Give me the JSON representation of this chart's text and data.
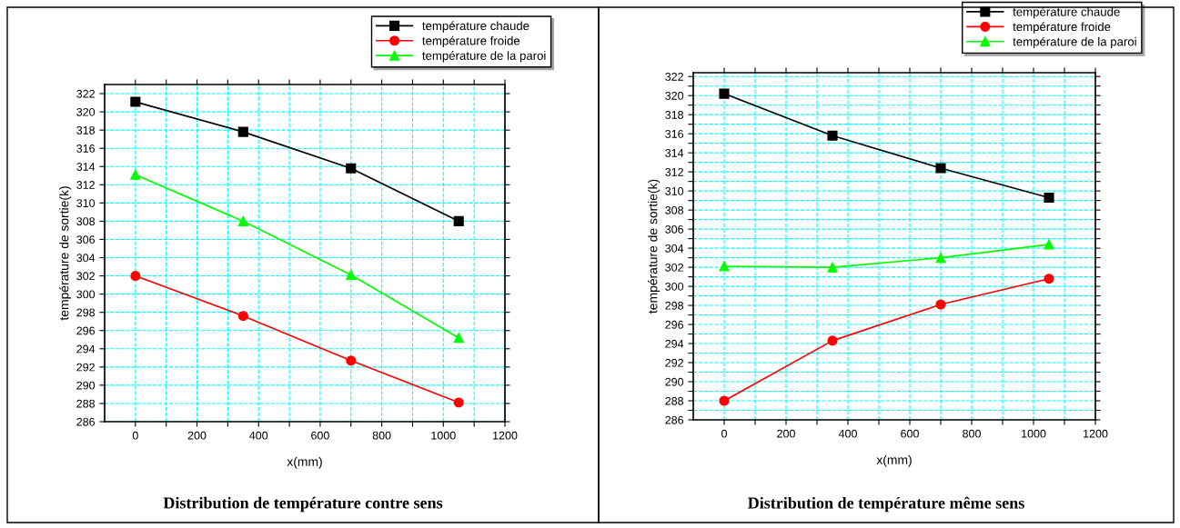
{
  "chart_data": [
    {
      "type": "line",
      "title": "Distribution de température contre sens",
      "xlabel": "x(mm)",
      "ylabel": "température de sortie(k)",
      "x": [
        0,
        350,
        700,
        1050
      ],
      "series": [
        {
          "name": "température chaude",
          "color": "#000000",
          "marker": "square",
          "values": [
            321.1,
            317.8,
            313.8,
            308.0
          ]
        },
        {
          "name": "température froide",
          "color": "#ff0000",
          "marker": "circle",
          "values": [
            302.0,
            297.6,
            292.7,
            288.1
          ]
        },
        {
          "name": "température de la paroi",
          "color": "#00ff00",
          "marker": "triangle",
          "values": [
            313.1,
            308.0,
            302.1,
            295.2
          ]
        }
      ],
      "xlim": [
        -100,
        1200
      ],
      "xticks": [
        0,
        {
          "value": 100,
          "label": null
        },
        200,
        {
          "value": 300,
          "label": null
        },
        400,
        {
          "value": 500,
          "label": null
        },
        600,
        {
          "value": 700,
          "label": null
        },
        800,
        {
          "value": 900,
          "label": null
        },
        1000,
        {
          "value": 1100,
          "label": null
        },
        1200
      ],
      "ylim": [
        286,
        323
      ],
      "yticks": [
        286,
        288,
        290,
        292,
        294,
        296,
        298,
        300,
        302,
        304,
        306,
        308,
        310,
        312,
        314,
        316,
        318,
        320,
        322
      ],
      "grid": true,
      "legend": "top right",
      "line_style": "solid"
    },
    {
      "type": "line",
      "title": "Distribution de température même sens",
      "xlabel": "x(mm)",
      "ylabel": "température de sortie(k)",
      "x": [
        0,
        350,
        700,
        1050
      ],
      "series": [
        {
          "name": "température chaude",
          "color": "#000000",
          "marker": "square",
          "values": [
            320.2,
            315.8,
            312.4,
            309.3
          ]
        },
        {
          "name": "température froide",
          "color": "#ff0000",
          "marker": "circle",
          "values": [
            288.0,
            294.3,
            298.1,
            300.8
          ]
        },
        {
          "name": "température de la paroi",
          "color": "#00ff00",
          "marker": "triangle",
          "values": [
            302.1,
            302.0,
            303.0,
            304.4
          ]
        }
      ],
      "xlim": [
        -100,
        1200
      ],
      "xticks": [
        0,
        {
          "value": 100,
          "label": null
        },
        200,
        {
          "value": 300,
          "label": null
        },
        400,
        {
          "value": 500,
          "label": null
        },
        600,
        {
          "value": 700,
          "label": null
        },
        800,
        {
          "value": 900,
          "label": null
        },
        1000,
        {
          "value": 1100,
          "label": null
        },
        1200
      ],
      "ylim": [
        286,
        322.4
      ],
      "yticks": [
        286,
        {
          "value": 287,
          "label": null
        },
        288,
        {
          "value": 289,
          "label": null
        },
        290,
        {
          "value": 291,
          "label": null
        },
        292,
        {
          "value": 293,
          "label": null
        },
        294,
        {
          "value": 295,
          "label": null
        },
        296,
        {
          "value": 297,
          "label": null
        },
        298,
        {
          "value": 299,
          "label": null
        },
        300,
        {
          "value": 301,
          "label": null
        },
        302,
        {
          "value": 303,
          "label": null
        },
        304,
        {
          "value": 305,
          "label": null
        },
        306,
        {
          "value": 307,
          "label": null
        },
        308,
        {
          "value": 309,
          "label": null
        },
        310,
        {
          "value": 311,
          "label": null
        },
        312,
        {
          "value": 313,
          "label": null
        },
        314,
        {
          "value": 315,
          "label": null
        },
        316,
        {
          "value": 317,
          "label": null
        },
        318,
        {
          "value": 319,
          "label": null
        },
        320,
        {
          "value": 321,
          "label": null
        },
        322
      ],
      "grid": true,
      "legend": "top right",
      "line_style": "solid"
    }
  ]
}
